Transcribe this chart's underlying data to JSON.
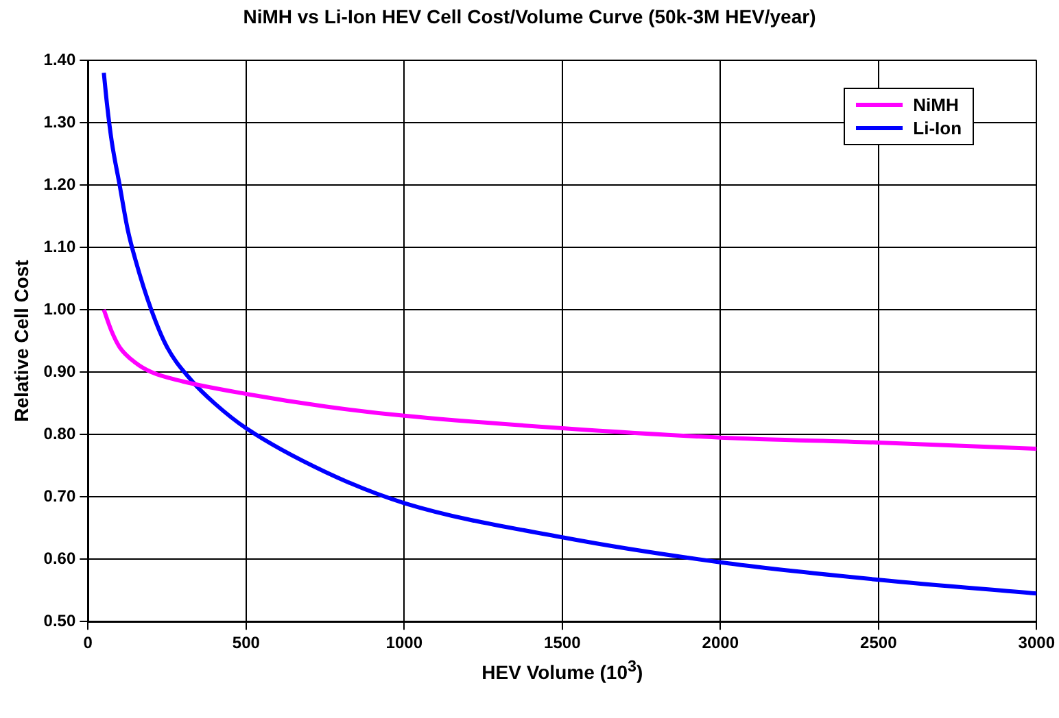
{
  "chart_data": {
    "type": "line",
    "title": "NiMH vs Li-Ion HEV Cell Cost/Volume Curve (50k-3M HEV/year)",
    "xlabel": "HEV Volume (10$^{3}$)",
    "ylabel": "Relative Cell Cost",
    "xlim": [
      0,
      3000
    ],
    "xticks": [
      0,
      500,
      1000,
      1500,
      2000,
      2500,
      3000
    ],
    "ylim": [
      0.5,
      1.4
    ],
    "yticks": [
      {
        "value": 0.5,
        "label": "0.50"
      },
      {
        "value": 0.6,
        "label": "0.60"
      },
      {
        "value": 0.7,
        "label": "0.70"
      },
      {
        "value": 0.8,
        "label": "0.80"
      },
      {
        "value": 0.9,
        "label": "0.90"
      },
      {
        "value": 1.0,
        "label": "1.00"
      },
      {
        "value": 1.1,
        "label": "1.10"
      },
      {
        "value": 1.2,
        "label": "1.20"
      },
      {
        "value": 1.3,
        "label": "1.30"
      },
      {
        "value": 1.4,
        "label": "1.40"
      }
    ],
    "grid": true,
    "legend": "top right",
    "marker": "none",
    "line_style": "solid",
    "series": [
      {
        "name": "NiMH",
        "color": "#ff00ff",
        "x": [
          50,
          75,
          100,
          150,
          200,
          300,
          500,
          750,
          1000,
          1500,
          2000,
          2500,
          3000
        ],
        "values": [
          1.0,
          0.965,
          0.94,
          0.915,
          0.9,
          0.885,
          0.865,
          0.845,
          0.83,
          0.81,
          0.795,
          0.787,
          0.777
        ]
      },
      {
        "name": "Li-Ion",
        "color": "#0000ff",
        "x": [
          50,
          60,
          75,
          100,
          125,
          150,
          200,
          250,
          330,
          400,
          500,
          750,
          1000,
          1500,
          2000,
          2500,
          3000
        ],
        "values": [
          1.38,
          1.33,
          1.27,
          1.2,
          1.13,
          1.08,
          1.0,
          0.94,
          0.885,
          0.85,
          0.81,
          0.74,
          0.69,
          0.635,
          0.595,
          0.567,
          0.545
        ]
      }
    ]
  }
}
